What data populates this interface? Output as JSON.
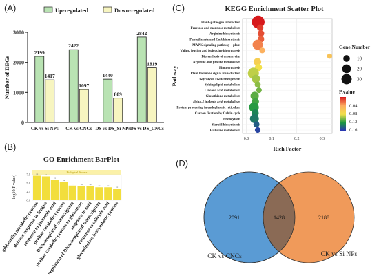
{
  "panels": {
    "a": "(A)",
    "b": "(B)",
    "c": "(C)",
    "d": "(D)"
  },
  "colors": {
    "up": "#b9e3b3",
    "down": "#f7f5c0",
    "bar_stroke": "#222222",
    "go_bar": "#f2de3c",
    "venn_left": "#5a9bd4",
    "venn_right": "#f09a5a",
    "venn_overlap": "#8a6a55"
  },
  "chart_data": [
    {
      "type": "bar",
      "categories": [
        "CK vs Si NPs",
        "CK vs CNCs",
        "DS vs DS_Si NPs",
        "DS vs DS_CNCs"
      ],
      "series": [
        {
          "name": "Up-regulated",
          "values": [
            2199,
            2422,
            1440,
            2842
          ]
        },
        {
          "name": "Down-regulated",
          "values": [
            1417,
            1097,
            809,
            1819
          ]
        }
      ],
      "ylabel": "Number of DEGs",
      "yticks": [
        0,
        1000,
        2000,
        3000
      ],
      "ylim": [
        0,
        3000
      ],
      "legend": "top"
    },
    {
      "type": "bar",
      "title": "GO Enrichment BarPlot",
      "inner_title": "Biological Process",
      "ylabel": "-log10(P value)",
      "yticks": [
        "0.0",
        "2.5",
        "5.0",
        "7.5"
      ],
      "ylim": [
        0,
        7.5
      ],
      "categories": [
        "gibberellin metabolic process",
        "defense response to fungus",
        "response to jasmonic acid",
        "proline catabolic process",
        "DNA-templated transcription",
        "proline catabolic process to glutamate",
        "response to cold",
        "regulation of DNA-templated transcription",
        "response to salicylic acid",
        "glucosinolate biosynthetic process"
      ],
      "values": [
        7.2,
        7.0,
        6.0,
        5.3,
        4.3,
        4.1,
        4.1,
        3.8,
        3.8,
        3.3
      ]
    },
    {
      "type": "scatter",
      "title": "KEGG Enrichment Scatter Plot",
      "xlabel": "Rich Factor",
      "ylabel": "Pathway",
      "xticks": [
        "0.0",
        "0.1",
        "0.2",
        "0.3"
      ],
      "xlim": [
        -0.015,
        0.34
      ],
      "pathways": [
        {
          "name": "Plant–pathogen interaction",
          "rich": 0.047,
          "genes": 34,
          "p": 0.0
        },
        {
          "name": "Fructose and mannose metabolism",
          "rich": 0.055,
          "genes": 6,
          "p": 0.01
        },
        {
          "name": "Arginine biosynthesis",
          "rich": 0.058,
          "genes": 6,
          "p": 0.015
        },
        {
          "name": "Pantothenate and CoA biosynthesis",
          "rich": 0.058,
          "genes": 6,
          "p": 0.02
        },
        {
          "name": "MAPK signaling pathway – plant",
          "rich": 0.045,
          "genes": 20,
          "p": 0.03
        },
        {
          "name": "Valine, leucine and isoleucine biosynthesis",
          "rich": 0.063,
          "genes": 4,
          "p": 0.045
        },
        {
          "name": "Biosynthesis of ansamycins",
          "rich": 0.33,
          "genes": 3,
          "p": 0.06
        },
        {
          "name": "Arginine and proline metabolism",
          "rich": 0.044,
          "genes": 9,
          "p": 0.07
        },
        {
          "name": "Photosynthesis",
          "rich": 0.048,
          "genes": 8,
          "p": 0.085
        },
        {
          "name": "Plant hormone signal transduction",
          "rich": 0.028,
          "genes": 24,
          "p": 0.095
        },
        {
          "name": "Glycolysis / Gluconeogenesis",
          "rich": 0.038,
          "genes": 12,
          "p": 0.1
        },
        {
          "name": "Sphingolipid metabolism",
          "rich": 0.045,
          "genes": 5,
          "p": 0.105
        },
        {
          "name": "Linoleic acid metabolism",
          "rich": 0.05,
          "genes": 4,
          "p": 0.11
        },
        {
          "name": "Glutathione metabolism",
          "rich": 0.033,
          "genes": 12,
          "p": 0.115
        },
        {
          "name": "alpha–Linolenic acid metabolism",
          "rich": 0.036,
          "genes": 8,
          "p": 0.12
        },
        {
          "name": "Protein processing in endoplasmic reticulum",
          "rich": 0.03,
          "genes": 18,
          "p": 0.125
        },
        {
          "name": "Carbon fixation by Calvin cycle",
          "rich": 0.035,
          "genes": 8,
          "p": 0.135
        },
        {
          "name": "Endocytosis",
          "rich": 0.032,
          "genes": 14,
          "p": 0.14
        },
        {
          "name": "Steroid biosynthesis",
          "rich": 0.04,
          "genes": 5,
          "p": 0.15
        },
        {
          "name": "Histidine metabolism",
          "rich": 0.045,
          "genes": 4,
          "p": 0.16
        }
      ],
      "size_legend": {
        "title": "Gene Number",
        "values": [
          10,
          20,
          30
        ]
      },
      "color_legend": {
        "title": "P.value",
        "ticks": [
          "0.04",
          "0.08",
          "0.12",
          "0.16"
        ],
        "range": [
          0.0,
          0.17
        ],
        "colors": [
          "#d7191c",
          "#fdae61",
          "#f2e04a",
          "#1a9641",
          "#2b2bbf"
        ]
      }
    },
    {
      "type": "venn",
      "sets": [
        {
          "name": "CK vs CNCs",
          "only": 2091
        },
        {
          "name": "CK vs Si NPs",
          "only": 2188
        }
      ],
      "overlap": 1428
    }
  ]
}
